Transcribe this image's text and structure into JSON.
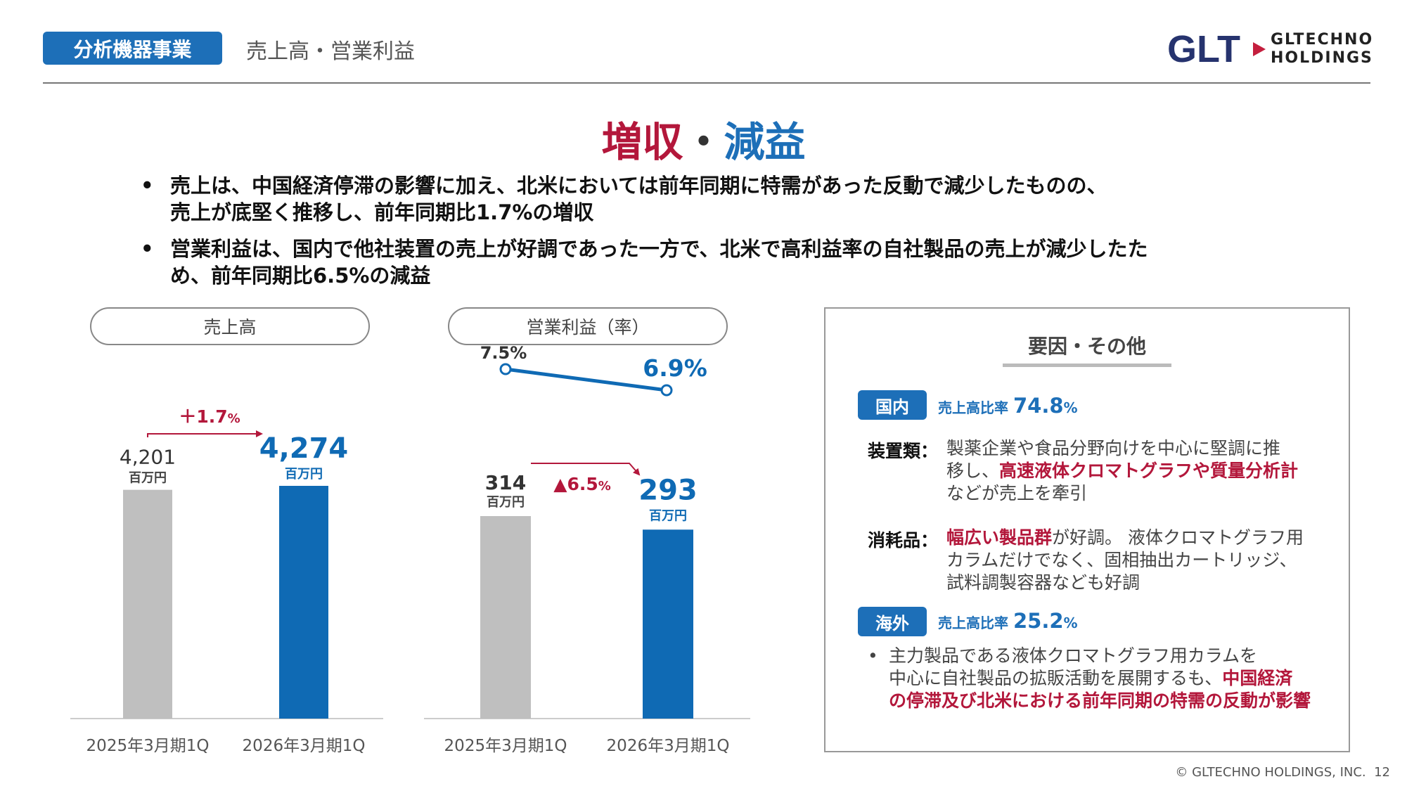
{
  "header": {
    "section_tag": "分析機器事業",
    "page_title": "売上高・営業利益",
    "logo_mark": "GLT",
    "logo_text_line1": "GLTECHNO",
    "logo_text_line2": "HOLDINGS"
  },
  "headline": {
    "part1": "増収",
    "sep": "・",
    "part2": "減益"
  },
  "bullets": [
    {
      "line1": "売上は、中国経済停滞の影響に加え、北米においては前年同期に特需があった反動で減少したものの、",
      "line2": "売上が底堅く推移し、前年同期比1.7%の増収"
    },
    {
      "line1": "営業利益は、国内で他社装置の売上が好調であった一方で、北米で高利益率の自社製品の売上が減少したた",
      "line2": "め、前年同期比6.5%の減益"
    }
  ],
  "chart_data": [
    {
      "type": "bar",
      "title": "売上高",
      "categories": [
        "2025年3月期1Q",
        "2026年3月期1Q"
      ],
      "values": [
        4201,
        4274
      ],
      "value_labels": [
        "4,201",
        "4,274"
      ],
      "unit": "百万円",
      "change_label": "＋1.7",
      "change_unit": "%",
      "colors": [
        "#bfbfbf",
        "#0f6ab4"
      ]
    },
    {
      "type": "bar+line",
      "title": "営業利益（率）",
      "categories": [
        "2025年3月期1Q",
        "2026年3月期1Q"
      ],
      "values": [
        314,
        293
      ],
      "value_labels": [
        "314",
        "293"
      ],
      "unit": "百万円",
      "change_label": "▲6.5",
      "change_unit": "%",
      "rate_values": [
        7.5,
        6.9
      ],
      "rate_labels": [
        "7.5%",
        "6.9%"
      ],
      "colors": [
        "#bfbfbf",
        "#0f6ab4"
      ]
    }
  ],
  "panel": {
    "title": "要因・その他",
    "domestic": {
      "badge": "国内",
      "ratio_label": "売上高比率",
      "ratio_value": "74.8",
      "ratio_unit": "%",
      "equipment_label": "装置類：",
      "equipment_l1": "製薬企業や食品分野向けを中心に堅調に推",
      "equipment_l2a": "移し、",
      "equipment_l2b": "高速液体クロマトグラフや質量分析計",
      "equipment_l3": "などが売上を牽引",
      "consumables_label": "消耗品：",
      "consumables_l1a": "幅広い製品群",
      "consumables_l1b": "が好調。 液体クロマトグラフ用",
      "consumables_l2": "カラムだけでなく、固相抽出カートリッジ、",
      "consumables_l3": "試料調製容器なども好調"
    },
    "overseas": {
      "badge": "海外",
      "ratio_label": "売上高比率",
      "ratio_value": "25.2",
      "ratio_unit": "%",
      "l1": "主力製品である液体クロマトグラフ用カラムを",
      "l2a": "中心に自社製品の拡販活動を展開するも、",
      "l2b": "中国経済",
      "l3": "の停滞及び北米における前年同期の特需の反動が影響"
    }
  },
  "footer": {
    "copyright": "© GLTECHNO HOLDINGS, INC.",
    "page_number": "12"
  }
}
